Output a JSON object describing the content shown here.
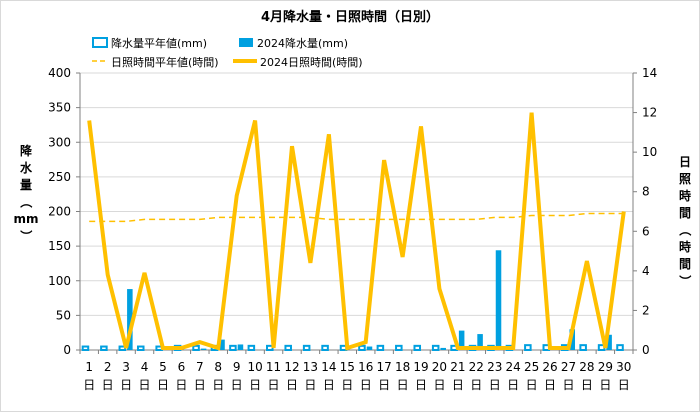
{
  "chart_data": {
    "type": "bar+line",
    "title": "4月降水量・日照時間（日別）",
    "left_axis": {
      "label": "降水量（mm）",
      "min": 0,
      "max": 400,
      "ticks": [
        0,
        50,
        100,
        150,
        200,
        250,
        300,
        350,
        400
      ]
    },
    "right_axis": {
      "label": "日照時間（時間）",
      "min": 0,
      "max": 14,
      "ticks": [
        0,
        2,
        4,
        6,
        8,
        10,
        12,
        14
      ]
    },
    "x_label_suffix": "日",
    "categories": [
      "1",
      "2",
      "3",
      "4",
      "5",
      "6",
      "7",
      "8",
      "9",
      "10",
      "11",
      "12",
      "13",
      "14",
      "15",
      "16",
      "17",
      "18",
      "19",
      "20",
      "21",
      "22",
      "23",
      "24",
      "25",
      "26",
      "27",
      "28",
      "29",
      "30"
    ],
    "legend": [
      {
        "name": "降水量平年値(mm)",
        "style": "hollow-bar",
        "color": "#00a0e0"
      },
      {
        "name": "2024降水量(mm)",
        "style": "bar",
        "color": "#00a0e0"
      },
      {
        "name": "日照時間平年値(時間)",
        "style": "dashed-line",
        "color": "#ffc000"
      },
      {
        "name": "2024日照時間(時間)",
        "style": "line",
        "color": "#ffc000"
      }
    ],
    "series": [
      {
        "name": "降水量平年値(mm)",
        "axis": "left",
        "type": "bar-outline",
        "values": [
          5,
          5,
          5,
          5,
          5,
          6,
          6,
          6,
          6,
          6,
          6,
          6,
          6,
          6,
          6,
          6,
          6,
          6,
          6,
          6,
          6,
          6,
          6,
          6,
          7,
          7,
          7,
          7,
          7,
          7
        ]
      },
      {
        "name": "2024降水量(mm)",
        "axis": "left",
        "type": "bar",
        "values": [
          0,
          0,
          88,
          0,
          0,
          0,
          2,
          15,
          8,
          0,
          0,
          0,
          0,
          0,
          0,
          5,
          0,
          0,
          0,
          3,
          28,
          23,
          144,
          0,
          0,
          0,
          30,
          0,
          22,
          0
        ]
      },
      {
        "name": "日照時間平年値(時間)",
        "axis": "right",
        "type": "dashed-line",
        "values": [
          6.5,
          6.5,
          6.5,
          6.6,
          6.6,
          6.6,
          6.6,
          6.7,
          6.7,
          6.7,
          6.7,
          6.7,
          6.7,
          6.6,
          6.6,
          6.6,
          6.6,
          6.6,
          6.6,
          6.6,
          6.6,
          6.6,
          6.7,
          6.7,
          6.8,
          6.8,
          6.8,
          6.9,
          6.9,
          6.9
        ]
      },
      {
        "name": "2024日照時間(時間)",
        "axis": "right",
        "type": "line",
        "values": [
          11.6,
          3.8,
          0.1,
          3.9,
          0.1,
          0.1,
          0.4,
          0.1,
          7.8,
          11.6,
          0.1,
          10.3,
          4.4,
          10.9,
          0.1,
          0.4,
          9.6,
          4.7,
          11.3,
          3.1,
          0.1,
          0.1,
          0.1,
          0.1,
          12.0,
          0.1,
          0.1,
          4.5,
          0.1,
          7.0
        ]
      }
    ],
    "colors": {
      "bar": "#00a0e0",
      "line": "#ffc000",
      "axis": "#808080",
      "grid": "#d9d9d9"
    }
  }
}
